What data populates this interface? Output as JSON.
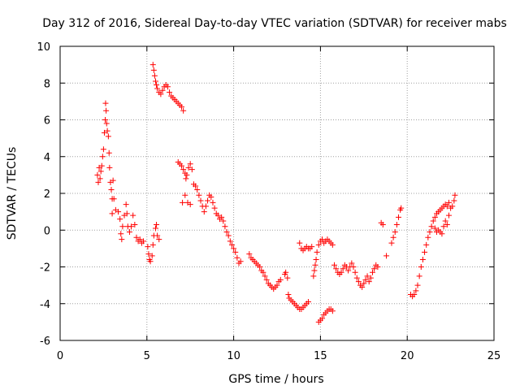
{
  "chart_data": {
    "type": "scatter",
    "title": "Day 312 of 2016, Sidereal Day-to-day VTEC variation (SDTVAR) for receiver mabs",
    "xlabel": "GPS time / hours",
    "ylabel": "SDTVAR / TECUs",
    "xlim": [
      0,
      25
    ],
    "ylim": [
      -6,
      10
    ],
    "xticks": [
      0,
      5,
      10,
      15,
      20,
      25
    ],
    "yticks": [
      -6,
      -4,
      -2,
      0,
      2,
      4,
      6,
      8,
      10
    ],
    "xtick_labels": [
      "0",
      "5",
      "10",
      "15",
      "20",
      "25"
    ],
    "ytick_labels": [
      "-6",
      "-4",
      "-2",
      "0",
      "2",
      "4",
      "6",
      "8",
      "10"
    ],
    "grid": true,
    "marker": "+",
    "color": "#ff0000",
    "series": [
      {
        "name": "SDTVAR",
        "points": [
          [
            2.15,
            3.0
          ],
          [
            2.2,
            2.6
          ],
          [
            2.25,
            3.4
          ],
          [
            2.3,
            2.8
          ],
          [
            2.35,
            3.2
          ],
          [
            2.4,
            3.5
          ],
          [
            2.45,
            4.0
          ],
          [
            2.5,
            4.4
          ],
          [
            2.55,
            5.3
          ],
          [
            2.6,
            6.0
          ],
          [
            2.62,
            6.9
          ],
          [
            2.65,
            6.5
          ],
          [
            2.68,
            5.8
          ],
          [
            2.72,
            5.4
          ],
          [
            2.78,
            5.1
          ],
          [
            2.82,
            4.2
          ],
          [
            2.85,
            3.4
          ],
          [
            2.9,
            2.6
          ],
          [
            2.95,
            2.2
          ],
          [
            3.0,
            1.7
          ],
          [
            3.05,
            2.7
          ],
          [
            3.1,
            1.7
          ],
          [
            3.0,
            0.9
          ],
          [
            3.2,
            1.1
          ],
          [
            3.35,
            1.0
          ],
          [
            3.45,
            0.6
          ],
          [
            3.5,
            -0.2
          ],
          [
            3.55,
            -0.5
          ],
          [
            3.6,
            0.2
          ],
          [
            3.7,
            0.8
          ],
          [
            3.8,
            1.4
          ],
          [
            3.85,
            0.9
          ],
          [
            3.9,
            0.2
          ],
          [
            4.0,
            -0.1
          ],
          [
            4.1,
            0.2
          ],
          [
            4.2,
            0.8
          ],
          [
            4.3,
            0.3
          ],
          [
            4.4,
            -0.4
          ],
          [
            4.5,
            -0.6
          ],
          [
            4.6,
            -0.5
          ],
          [
            4.7,
            -0.7
          ],
          [
            4.8,
            -0.6
          ],
          [
            5.05,
            -0.9
          ],
          [
            5.1,
            -1.3
          ],
          [
            5.15,
            -1.6
          ],
          [
            5.2,
            -1.7
          ],
          [
            5.3,
            -1.4
          ],
          [
            5.35,
            -0.8
          ],
          [
            5.4,
            -0.3
          ],
          [
            5.5,
            0.1
          ],
          [
            5.55,
            0.3
          ],
          [
            5.6,
            -0.3
          ],
          [
            5.7,
            -0.5
          ],
          [
            5.35,
            9.0
          ],
          [
            5.4,
            8.7
          ],
          [
            5.45,
            8.4
          ],
          [
            5.5,
            8.1
          ],
          [
            5.55,
            7.9
          ],
          [
            5.6,
            7.7
          ],
          [
            5.7,
            7.5
          ],
          [
            5.8,
            7.4
          ],
          [
            5.9,
            7.6
          ],
          [
            6.0,
            7.8
          ],
          [
            6.1,
            7.9
          ],
          [
            6.2,
            7.8
          ],
          [
            6.3,
            7.5
          ],
          [
            6.4,
            7.3
          ],
          [
            6.5,
            7.2
          ],
          [
            6.6,
            7.1
          ],
          [
            6.7,
            7.0
          ],
          [
            6.8,
            6.9
          ],
          [
            6.9,
            6.8
          ],
          [
            7.0,
            6.7
          ],
          [
            7.1,
            6.5
          ],
          [
            6.8,
            3.7
          ],
          [
            6.9,
            3.6
          ],
          [
            7.0,
            3.5
          ],
          [
            7.1,
            3.3
          ],
          [
            7.2,
            3.1
          ],
          [
            7.25,
            2.8
          ],
          [
            7.3,
            3.0
          ],
          [
            7.4,
            3.4
          ],
          [
            7.5,
            3.6
          ],
          [
            7.6,
            3.3
          ],
          [
            7.7,
            2.5
          ],
          [
            7.05,
            1.5
          ],
          [
            7.2,
            1.9
          ],
          [
            7.35,
            1.5
          ],
          [
            7.5,
            1.4
          ],
          [
            7.8,
            2.4
          ],
          [
            7.9,
            2.2
          ],
          [
            8.0,
            1.9
          ],
          [
            8.1,
            1.6
          ],
          [
            8.2,
            1.3
          ],
          [
            8.3,
            1.0
          ],
          [
            8.4,
            1.3
          ],
          [
            8.5,
            1.6
          ],
          [
            8.6,
            1.9
          ],
          [
            8.7,
            1.8
          ],
          [
            8.8,
            1.5
          ],
          [
            8.9,
            1.2
          ],
          [
            9.0,
            0.9
          ],
          [
            9.1,
            0.8
          ],
          [
            9.2,
            0.6
          ],
          [
            9.3,
            0.7
          ],
          [
            9.4,
            0.5
          ],
          [
            9.5,
            0.2
          ],
          [
            9.6,
            -0.1
          ],
          [
            9.7,
            -0.3
          ],
          [
            9.8,
            -0.6
          ],
          [
            9.9,
            -0.8
          ],
          [
            10.0,
            -1.0
          ],
          [
            10.1,
            -1.2
          ],
          [
            10.2,
            -1.5
          ],
          [
            10.3,
            -1.8
          ],
          [
            10.4,
            -1.7
          ],
          [
            10.9,
            -1.3
          ],
          [
            11.0,
            -1.5
          ],
          [
            11.1,
            -1.6
          ],
          [
            11.2,
            -1.7
          ],
          [
            11.3,
            -1.8
          ],
          [
            11.4,
            -1.9
          ],
          [
            11.5,
            -2.0
          ],
          [
            11.6,
            -2.2
          ],
          [
            11.7,
            -2.3
          ],
          [
            11.8,
            -2.5
          ],
          [
            11.9,
            -2.7
          ],
          [
            12.0,
            -2.9
          ],
          [
            12.1,
            -3.0
          ],
          [
            12.2,
            -3.1
          ],
          [
            12.3,
            -3.2
          ],
          [
            12.4,
            -3.1
          ],
          [
            12.5,
            -3.0
          ],
          [
            12.6,
            -2.8
          ],
          [
            12.7,
            -2.7
          ],
          [
            12.95,
            -2.4
          ],
          [
            13.0,
            -2.3
          ],
          [
            13.1,
            -2.6
          ],
          [
            13.15,
            -3.5
          ],
          [
            13.2,
            -3.7
          ],
          [
            13.3,
            -3.8
          ],
          [
            13.4,
            -3.9
          ],
          [
            13.5,
            -4.0
          ],
          [
            13.6,
            -4.1
          ],
          [
            13.7,
            -4.2
          ],
          [
            13.8,
            -4.3
          ],
          [
            13.9,
            -4.3
          ],
          [
            14.0,
            -4.2
          ],
          [
            14.1,
            -4.1
          ],
          [
            14.2,
            -4.0
          ],
          [
            14.3,
            -3.9
          ],
          [
            13.8,
            -0.7
          ],
          [
            13.9,
            -1.0
          ],
          [
            14.0,
            -1.1
          ],
          [
            14.1,
            -1.0
          ],
          [
            14.2,
            -0.9
          ],
          [
            14.3,
            -1.0
          ],
          [
            14.4,
            -1.0
          ],
          [
            14.5,
            -0.9
          ],
          [
            14.6,
            -2.5
          ],
          [
            14.65,
            -2.2
          ],
          [
            14.7,
            -1.9
          ],
          [
            14.75,
            -1.6
          ],
          [
            14.8,
            -1.2
          ],
          [
            14.9,
            -0.8
          ],
          [
            15.0,
            -0.6
          ],
          [
            15.1,
            -0.5
          ],
          [
            15.2,
            -0.7
          ],
          [
            15.3,
            -0.6
          ],
          [
            15.4,
            -0.5
          ],
          [
            15.5,
            -0.6
          ],
          [
            15.6,
            -0.7
          ],
          [
            15.7,
            -0.8
          ],
          [
            14.9,
            -5.0
          ],
          [
            15.0,
            -4.9
          ],
          [
            15.1,
            -4.8
          ],
          [
            15.2,
            -4.6
          ],
          [
            15.3,
            -4.5
          ],
          [
            15.4,
            -4.4
          ],
          [
            15.5,
            -4.3
          ],
          [
            15.6,
            -4.3
          ],
          [
            15.7,
            -4.4
          ],
          [
            15.8,
            -1.9
          ],
          [
            15.9,
            -2.1
          ],
          [
            16.0,
            -2.3
          ],
          [
            16.1,
            -2.4
          ],
          [
            16.2,
            -2.3
          ],
          [
            16.3,
            -2.1
          ],
          [
            16.4,
            -1.9
          ],
          [
            16.5,
            -2.0
          ],
          [
            16.6,
            -2.2
          ],
          [
            16.7,
            -2.0
          ],
          [
            16.8,
            -1.8
          ],
          [
            16.9,
            -2.0
          ],
          [
            17.0,
            -2.3
          ],
          [
            17.1,
            -2.6
          ],
          [
            17.2,
            -2.8
          ],
          [
            17.3,
            -3.0
          ],
          [
            17.4,
            -3.1
          ],
          [
            17.5,
            -2.9
          ],
          [
            17.6,
            -2.7
          ],
          [
            17.7,
            -2.5
          ],
          [
            17.8,
            -2.8
          ],
          [
            17.9,
            -2.6
          ],
          [
            18.0,
            -2.3
          ],
          [
            18.1,
            -2.1
          ],
          [
            18.2,
            -1.9
          ],
          [
            18.3,
            -2.0
          ],
          [
            18.5,
            0.4
          ],
          [
            18.6,
            0.3
          ],
          [
            18.8,
            -1.4
          ],
          [
            19.1,
            -0.7
          ],
          [
            19.2,
            -0.4
          ],
          [
            19.3,
            -0.1
          ],
          [
            19.4,
            0.3
          ],
          [
            19.5,
            0.7
          ],
          [
            19.6,
            1.1
          ],
          [
            19.65,
            1.2
          ],
          [
            20.2,
            -3.5
          ],
          [
            20.3,
            -3.6
          ],
          [
            20.4,
            -3.5
          ],
          [
            20.5,
            -3.3
          ],
          [
            20.6,
            -3.0
          ],
          [
            20.7,
            -2.5
          ],
          [
            20.8,
            -2.0
          ],
          [
            20.9,
            -1.6
          ],
          [
            21.0,
            -1.2
          ],
          [
            21.1,
            -0.8
          ],
          [
            21.2,
            -0.4
          ],
          [
            21.3,
            -0.1
          ],
          [
            21.4,
            0.2
          ],
          [
            21.5,
            0.5
          ],
          [
            21.6,
            0.7
          ],
          [
            21.7,
            0.9
          ],
          [
            21.8,
            1.0
          ],
          [
            21.9,
            1.1
          ],
          [
            22.0,
            1.2
          ],
          [
            22.1,
            1.3
          ],
          [
            22.2,
            1.4
          ],
          [
            22.3,
            1.3
          ],
          [
            22.4,
            1.5
          ],
          [
            22.5,
            1.2
          ],
          [
            22.6,
            1.3
          ],
          [
            22.7,
            1.6
          ],
          [
            22.75,
            1.9
          ],
          [
            21.6,
            0.1
          ],
          [
            21.7,
            -0.1
          ],
          [
            21.8,
            0.0
          ],
          [
            21.9,
            -0.1
          ],
          [
            22.0,
            -0.2
          ],
          [
            22.1,
            0.2
          ],
          [
            22.2,
            0.5
          ],
          [
            22.3,
            0.3
          ],
          [
            22.4,
            0.8
          ]
        ]
      }
    ]
  }
}
